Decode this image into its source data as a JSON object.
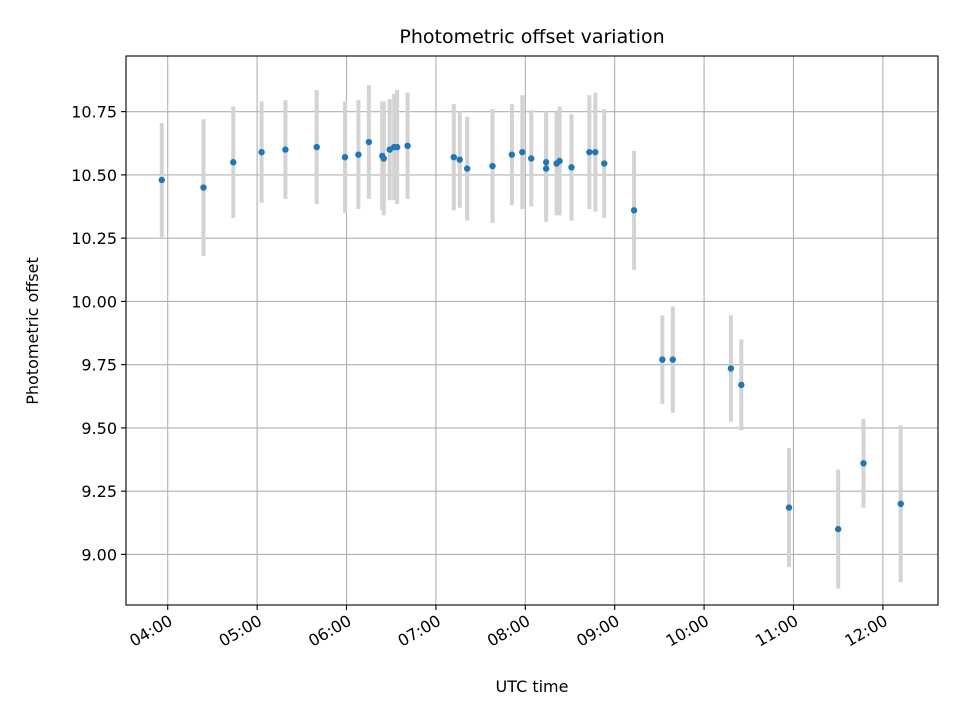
{
  "chart_data": {
    "type": "scatter",
    "title": "Photometric offset variation",
    "xlabel": "UTC time",
    "ylabel": "Photometric offset",
    "x_axis": {
      "kind": "time",
      "range": [
        "03:32",
        "12:37"
      ],
      "ticks": [
        "04:00",
        "05:00",
        "06:00",
        "07:00",
        "08:00",
        "09:00",
        "10:00",
        "11:00",
        "12:00"
      ]
    },
    "y_axis": {
      "range": [
        8.8,
        10.97
      ],
      "ticks": [
        "9.00",
        "9.25",
        "9.50",
        "9.75",
        "10.00",
        "10.25",
        "10.50",
        "10.75"
      ]
    },
    "grid": true,
    "legend": "none",
    "colors": {
      "point": "#1f77b4",
      "errorbar": "#d3d3d3",
      "grid": "#b0b0b0"
    },
    "points": [
      {
        "x": "03:56",
        "y": 10.48,
        "err": 0.225
      },
      {
        "x": "04:24",
        "y": 10.45,
        "err": 0.27
      },
      {
        "x": "04:44",
        "y": 10.55,
        "err": 0.22
      },
      {
        "x": "05:03",
        "y": 10.59,
        "err": 0.2
      },
      {
        "x": "05:19",
        "y": 10.6,
        "err": 0.195
      },
      {
        "x": "05:40",
        "y": 10.61,
        "err": 0.225
      },
      {
        "x": "05:59",
        "y": 10.57,
        "err": 0.22
      },
      {
        "x": "06:08",
        "y": 10.58,
        "err": 0.215
      },
      {
        "x": "06:15",
        "y": 10.63,
        "err": 0.225
      },
      {
        "x": "06:24",
        "y": 10.575,
        "err": 0.215
      },
      {
        "x": "06:25",
        "y": 10.565,
        "err": 0.225
      },
      {
        "x": "06:29",
        "y": 10.6,
        "err": 0.2
      },
      {
        "x": "06:32",
        "y": 10.61,
        "err": 0.21
      },
      {
        "x": "06:34",
        "y": 10.61,
        "err": 0.225
      },
      {
        "x": "06:41",
        "y": 10.615,
        "err": 0.21
      },
      {
        "x": "07:12",
        "y": 10.57,
        "err": 0.21
      },
      {
        "x": "07:16",
        "y": 10.56,
        "err": 0.19
      },
      {
        "x": "07:21",
        "y": 10.525,
        "err": 0.205
      },
      {
        "x": "07:38",
        "y": 10.535,
        "err": 0.225
      },
      {
        "x": "07:51",
        "y": 10.58,
        "err": 0.2
      },
      {
        "x": "07:58",
        "y": 10.59,
        "err": 0.225
      },
      {
        "x": "08:04",
        "y": 10.565,
        "err": 0.19
      },
      {
        "x": "08:14",
        "y": 10.55,
        "err": 0.2
      },
      {
        "x": "08:14",
        "y": 10.525,
        "err": 0.21
      },
      {
        "x": "08:21",
        "y": 10.545,
        "err": 0.205
      },
      {
        "x": "08:23",
        "y": 10.555,
        "err": 0.215
      },
      {
        "x": "08:31",
        "y": 10.53,
        "err": 0.21
      },
      {
        "x": "08:43",
        "y": 10.59,
        "err": 0.225
      },
      {
        "x": "08:47",
        "y": 10.59,
        "err": 0.235
      },
      {
        "x": "08:53",
        "y": 10.545,
        "err": 0.215
      },
      {
        "x": "09:13",
        "y": 10.36,
        "err": 0.235
      },
      {
        "x": "09:32",
        "y": 9.77,
        "err": 0.175
      },
      {
        "x": "09:39",
        "y": 9.77,
        "err": 0.21
      },
      {
        "x": "10:18",
        "y": 9.735,
        "err": 0.21
      },
      {
        "x": "10:25",
        "y": 9.67,
        "err": 0.18
      },
      {
        "x": "10:57",
        "y": 9.185,
        "err": 0.235
      },
      {
        "x": "11:30",
        "y": 9.1,
        "err": 0.235
      },
      {
        "x": "11:47",
        "y": 9.36,
        "err": 0.175
      },
      {
        "x": "12:12",
        "y": 9.2,
        "err": 0.31
      }
    ]
  }
}
